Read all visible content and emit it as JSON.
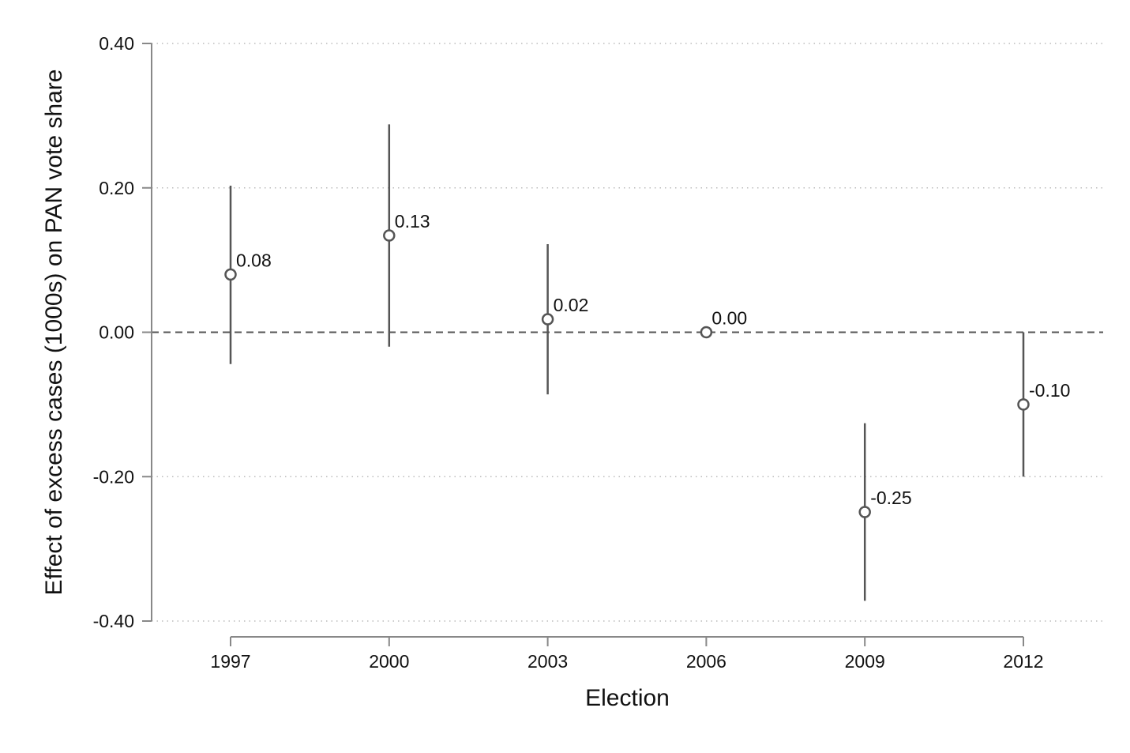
{
  "chart_data": {
    "type": "scatter",
    "title": "",
    "xlabel": "Election",
    "ylabel": "Effect of excess cases (1000s) on PAN vote share",
    "categories": [
      "1997",
      "2000",
      "2003",
      "2006",
      "2009",
      "2012"
    ],
    "points": [
      {
        "x": "1997",
        "y": 0.08,
        "ci_low": -0.044,
        "ci_high": 0.203,
        "label": "0.08"
      },
      {
        "x": "2000",
        "y": 0.134,
        "ci_low": -0.02,
        "ci_high": 0.288,
        "label": "0.13"
      },
      {
        "x": "2003",
        "y": 0.018,
        "ci_low": -0.086,
        "ci_high": 0.122,
        "label": "0.02"
      },
      {
        "x": "2006",
        "y": 0.0,
        "ci_low": null,
        "ci_high": null,
        "label": "0.00"
      },
      {
        "x": "2009",
        "y": -0.249,
        "ci_low": -0.372,
        "ci_high": -0.126,
        "label": "-0.25"
      },
      {
        "x": "2012",
        "y": -0.1,
        "ci_low": -0.2,
        "ci_high": 0.0,
        "label": "-0.10"
      }
    ],
    "yticks": [
      0.4,
      0.2,
      0.0,
      -0.2,
      -0.4
    ],
    "ytick_labels": [
      "0.40",
      "0.20",
      "0.00",
      "-0.20",
      "-0.40"
    ],
    "ylim": [
      -0.4,
      0.4
    ],
    "reference_line": 0,
    "grid": true,
    "legend": "none",
    "colors": {
      "marker": "#555555",
      "ci_line": "#555555",
      "grid": "#bbbbbb",
      "axis": "#888888",
      "reference": "#555555"
    }
  }
}
